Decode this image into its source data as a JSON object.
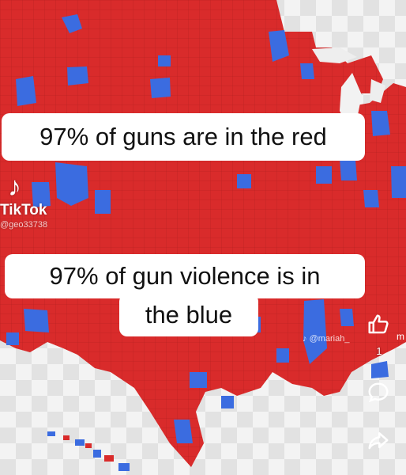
{
  "colors": {
    "red": "#d92b2b",
    "red_dark": "#a81d1d",
    "blue": "#3b6ce0",
    "caption_bg": "#ffffff",
    "caption_text": "#111111"
  },
  "captions": {
    "top": "97% of guns are in the red",
    "bottom_line1": "97% of gun violence is in",
    "bottom_line2": "the blue"
  },
  "watermark": {
    "brand": "TikTok",
    "handle": "@geo33738",
    "second_handle": "@mariah_",
    "edge_char": "m"
  },
  "actions": {
    "like_icon": "thumbs-up-icon",
    "like_count": "1",
    "comment_icon": "comment-bubble-icon",
    "share_icon": "share-arrow-icon"
  },
  "map": {
    "subject": "County-level map of the continental United States colored red and blue"
  }
}
